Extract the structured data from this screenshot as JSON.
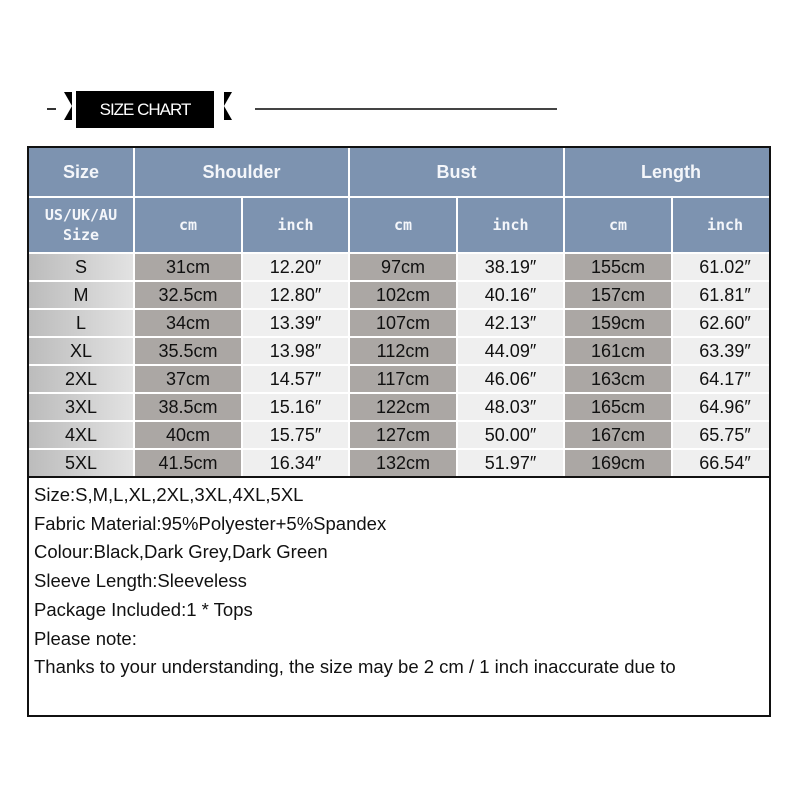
{
  "banner": {
    "title": "SIZE CHART"
  },
  "table": {
    "headers": {
      "size": "Size",
      "shoulder": "Shoulder",
      "bust": "Bust",
      "length": "Length"
    },
    "subheaders": {
      "size": "US/UK/AU Size",
      "cm": "cm",
      "inch": "inch"
    },
    "rows": [
      [
        "S",
        "31cm",
        "12.20″",
        "97cm",
        "38.19″",
        "155cm",
        "61.02″"
      ],
      [
        "M",
        "32.5cm",
        "12.80″",
        "102cm",
        "40.16″",
        "157cm",
        "61.81″"
      ],
      [
        "L",
        "34cm",
        "13.39″",
        "107cm",
        "42.13″",
        "159cm",
        "62.60″"
      ],
      [
        "XL",
        "35.5cm",
        "13.98″",
        "112cm",
        "44.09″",
        "161cm",
        "63.39″"
      ],
      [
        "2XL",
        "37cm",
        "14.57″",
        "117cm",
        "46.06″",
        "163cm",
        "64.17″"
      ],
      [
        "3XL",
        "38.5cm",
        "15.16″",
        "122cm",
        "48.03″",
        "165cm",
        "64.96″"
      ],
      [
        "4XL",
        "40cm",
        "15.75″",
        "127cm",
        "50.00″",
        "167cm",
        "65.75″"
      ],
      [
        "5XL",
        "41.5cm",
        "16.34″",
        "132cm",
        "51.97″",
        "169cm",
        "66.54″"
      ]
    ]
  },
  "notes": [
    "Size:S,M,L,XL,2XL,3XL,4XL,5XL",
    "Fabric Material:95%Polyester+5%Spandex",
    "Colour:Black,Dark Grey,Dark Green",
    "Sleeve Length:Sleeveless",
    "Package Included:1 * Tops",
    "Please note:",
    "Thanks to your understanding, the size may be 2 cm / 1 inch inaccurate due to"
  ],
  "colors": {
    "header": "#7d93b0",
    "cm_column": "#aba7a4",
    "inch_column": "#efefef",
    "banner": "#000000"
  }
}
